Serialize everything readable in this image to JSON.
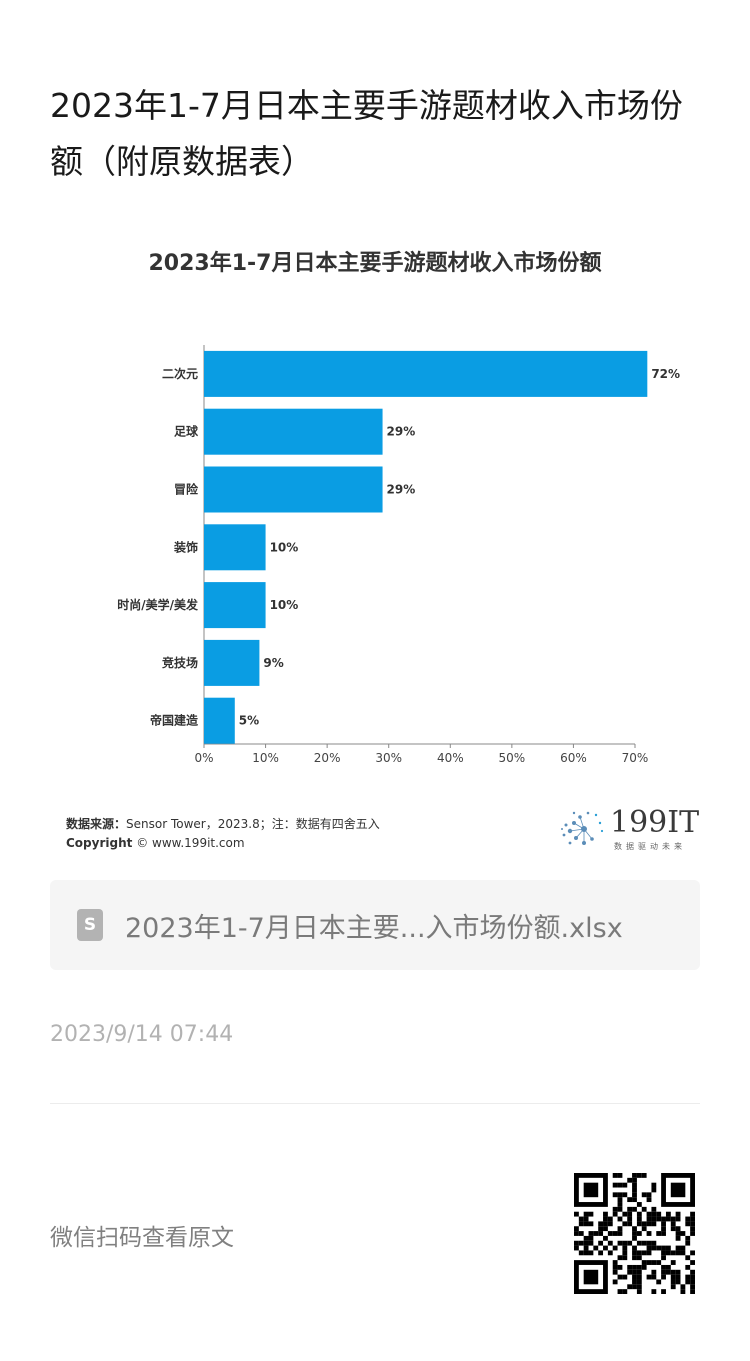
{
  "article": {
    "title": "2023年1-7月日本主要手游题材收入市场份额（附原数据表）"
  },
  "chart_data": {
    "type": "bar",
    "orientation": "horizontal",
    "title": "2023年1-7月日本主要手游题材收入市场份额",
    "categories": [
      "二次元",
      "足球",
      "冒险",
      "装饰",
      "时尚/美学/美发",
      "竞技场",
      "帝国建造"
    ],
    "values": [
      72,
      29,
      29,
      10,
      10,
      9,
      5
    ],
    "value_labels": [
      "72%",
      "29%",
      "29%",
      "10%",
      "10%",
      "9%",
      "5%"
    ],
    "xlim": [
      0,
      70
    ],
    "x_ticks": [
      "0%",
      "10%",
      "20%",
      "30%",
      "40%",
      "50%",
      "60%",
      "70%"
    ],
    "x_tick_values": [
      0,
      10,
      20,
      30,
      40,
      50,
      60,
      70
    ],
    "bar_color": "#0a9de3",
    "grid": false,
    "legend": "none"
  },
  "chart_footer": {
    "source_label": "数据来源：",
    "source_text": "Sensor Tower，2023.8；注：数据有四舍五入",
    "copyright_label": "Copyright",
    "copyright_text": "www.199it.com",
    "logo_text": "199IT",
    "logo_sub": "数据驱动未来"
  },
  "attachment": {
    "icon": "spreadsheet-file-icon",
    "icon_letter": "S",
    "file_name": "2023年1-7月日本主要...入市场份额.xlsx"
  },
  "meta": {
    "publish_date": "2023/9/14 07:44"
  },
  "footer": {
    "scan_text": "微信扫码查看原文",
    "qr_icon": "qr-code-icon"
  }
}
